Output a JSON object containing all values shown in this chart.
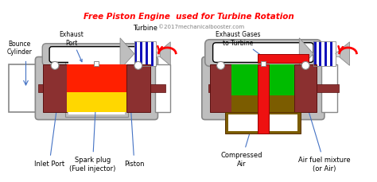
{
  "title": "Free Piston Engine  used for Turbine Rotation",
  "title_color": "#FF0000",
  "title_fontsize": 7.5,
  "copyright": "©2017mechanicalbooster.com",
  "bg_color": "#FFFFFF",
  "labels": {
    "inlet_port": "Inlet Port",
    "spark_plug": "Spark plug\n(Fuel injector)",
    "piston": "Piston",
    "compressed_air": "Compressed\nAir",
    "air_fuel": "Air fuel mixture\n(or Air)",
    "bounce_cylinder": "Bounce\nCylinder",
    "exhaust_port": "Exhaust\nPort",
    "turbine_left": "Turbine",
    "exhaust_gases": "Exhaust Gases\nto Turbine"
  },
  "colors": {
    "cylinder_body": "#8B3030",
    "cylinder_gray": "#BEBEBE",
    "combustion_yellow": "#FFD700",
    "combustion_red": "#FF2000",
    "combustion_orange": "#FF6600",
    "green_fill": "#00BB00",
    "olive_fill": "#7B5C00",
    "red_pipe": "#EE1111",
    "blue_dark": "#1111BB",
    "white": "#FFFFFF",
    "arrow_blue": "#4472C4",
    "light_gray": "#D8D8D8",
    "dark_gray": "#888888"
  }
}
